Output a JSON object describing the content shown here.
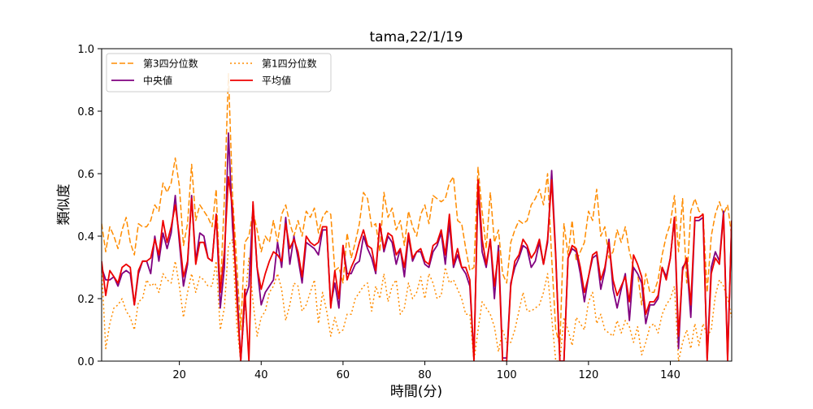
{
  "chart_data": {
    "type": "line",
    "title": "tama,22/1/19",
    "xlabel": "時間(分)",
    "ylabel": "類似度",
    "xlim": [
      1,
      155
    ],
    "ylim": [
      0.0,
      1.0
    ],
    "xticks": [
      20,
      40,
      60,
      80,
      100,
      120,
      140
    ],
    "yticks": [
      0.0,
      0.2,
      0.4,
      0.6,
      0.8,
      1.0
    ],
    "ytick_labels": [
      "0.0",
      "0.2",
      "0.4",
      "0.6",
      "0.8",
      "1.0"
    ],
    "grid": false,
    "legend_placement": "upper left, two columns",
    "x_start": 1,
    "series": [
      {
        "name": "第3四分位数",
        "color": "#ff8c00",
        "style": "dashed",
        "values": [
          0.44,
          0.35,
          0.43,
          0.4,
          0.36,
          0.42,
          0.46,
          0.38,
          0.34,
          0.44,
          0.43,
          0.43,
          0.45,
          0.5,
          0.48,
          0.57,
          0.54,
          0.57,
          0.65,
          0.56,
          0.37,
          0.44,
          0.63,
          0.45,
          0.5,
          0.48,
          0.46,
          0.43,
          0.55,
          0.22,
          0.52,
          0.92,
          0.53,
          0.32,
          0.1,
          0.38,
          0.4,
          0.48,
          0.42,
          0.35,
          0.4,
          0.38,
          0.45,
          0.38,
          0.47,
          0.5,
          0.44,
          0.4,
          0.45,
          0.4,
          0.48,
          0.46,
          0.49,
          0.41,
          0.46,
          0.48,
          0.47,
          0.29,
          0.3,
          0.25,
          0.41,
          0.33,
          0.38,
          0.44,
          0.54,
          0.52,
          0.43,
          0.44,
          0.35,
          0.54,
          0.46,
          0.49,
          0.42,
          0.45,
          0.37,
          0.48,
          0.43,
          0.4,
          0.47,
          0.5,
          0.44,
          0.53,
          0.52,
          0.51,
          0.52,
          0.57,
          0.59,
          0.45,
          0.44,
          0.36,
          0.29,
          0.3,
          0.62,
          0.48,
          0.36,
          0.54,
          0.38,
          0.42,
          0.28,
          0.25,
          0.38,
          0.42,
          0.45,
          0.44,
          0.45,
          0.5,
          0.52,
          0.55,
          0.5,
          0.6,
          0.33,
          0.1,
          0.05,
          0.44,
          0.34,
          0.45,
          0.32,
          0.35,
          0.38,
          0.48,
          0.45,
          0.55,
          0.4,
          0.43,
          0.33,
          0.35,
          0.42,
          0.38,
          0.43,
          0.35,
          0.3,
          0.28,
          0.18,
          0.28,
          0.22,
          0.22,
          0.26,
          0.34,
          0.4,
          0.44,
          0.53,
          0.35,
          0.52,
          0.25,
          0.48,
          0.52,
          0.48,
          0.47,
          0.22,
          0.4,
          0.47,
          0.51,
          0.47,
          0.5,
          0.4
        ]
      },
      {
        "name": "第1四分位数",
        "color": "#ff8c00",
        "style": "dotted",
        "values": [
          0.3,
          0.04,
          0.12,
          0.17,
          0.18,
          0.2,
          0.16,
          0.14,
          0.1,
          0.19,
          0.2,
          0.26,
          0.24,
          0.25,
          0.22,
          0.28,
          0.26,
          0.25,
          0.32,
          0.24,
          0.14,
          0.22,
          0.28,
          0.22,
          0.27,
          0.26,
          0.24,
          0.24,
          0.32,
          0.1,
          0.17,
          0.37,
          0.39,
          0.12,
          0.0,
          0.18,
          0.33,
          0.19,
          0.08,
          0.14,
          0.16,
          0.22,
          0.24,
          0.28,
          0.23,
          0.13,
          0.18,
          0.25,
          0.24,
          0.16,
          0.18,
          0.22,
          0.26,
          0.12,
          0.22,
          0.16,
          0.08,
          0.14,
          0.09,
          0.1,
          0.15,
          0.15,
          0.2,
          0.22,
          0.24,
          0.25,
          0.16,
          0.24,
          0.2,
          0.28,
          0.19,
          0.24,
          0.26,
          0.15,
          0.17,
          0.25,
          0.2,
          0.22,
          0.27,
          0.2,
          0.28,
          0.25,
          0.2,
          0.21,
          0.3,
          0.25,
          0.26,
          0.23,
          0.2,
          0.15,
          0.15,
          0.0,
          0.1,
          0.19,
          0.17,
          0.15,
          0.11,
          0.03,
          0.1,
          0.06,
          0.06,
          0.1,
          0.16,
          0.22,
          0.16,
          0.16,
          0.17,
          0.18,
          0.22,
          0.28,
          0.14,
          0.0,
          0.0,
          0.14,
          0.1,
          0.05,
          0.14,
          0.12,
          0.1,
          0.19,
          0.22,
          0.12,
          0.15,
          0.1,
          0.09,
          0.08,
          0.13,
          0.09,
          0.13,
          0.11,
          0.06,
          0.11,
          0.02,
          0.06,
          0.11,
          0.12,
          0.09,
          0.15,
          0.18,
          0.2,
          0.24,
          0.0,
          0.06,
          0.1,
          0.04,
          0.12,
          0.05,
          0.12,
          0.08,
          0.1,
          0.21,
          0.26,
          0.24,
          0.2,
          0.14
        ]
      },
      {
        "name": "中央値",
        "color": "#800080",
        "style": "solid",
        "values": [
          0.3,
          0.26,
          0.26,
          0.27,
          0.24,
          0.28,
          0.29,
          0.28,
          0.18,
          0.28,
          0.32,
          0.32,
          0.28,
          0.4,
          0.32,
          0.41,
          0.36,
          0.41,
          0.53,
          0.38,
          0.24,
          0.31,
          0.53,
          0.32,
          0.41,
          0.4,
          0.33,
          0.32,
          0.47,
          0.17,
          0.3,
          0.73,
          0.43,
          0.25,
          0.0,
          0.2,
          0.24,
          0.5,
          0.3,
          0.18,
          0.22,
          0.24,
          0.26,
          0.38,
          0.3,
          0.46,
          0.31,
          0.4,
          0.33,
          0.25,
          0.38,
          0.37,
          0.36,
          0.34,
          0.42,
          0.42,
          0.18,
          0.25,
          0.17,
          0.37,
          0.28,
          0.28,
          0.31,
          0.32,
          0.4,
          0.36,
          0.33,
          0.28,
          0.44,
          0.35,
          0.4,
          0.38,
          0.31,
          0.36,
          0.27,
          0.4,
          0.32,
          0.35,
          0.35,
          0.31,
          0.3,
          0.35,
          0.37,
          0.41,
          0.31,
          0.44,
          0.3,
          0.34,
          0.3,
          0.28,
          0.24,
          0.01,
          0.56,
          0.35,
          0.3,
          0.39,
          0.2,
          0.37,
          0.01,
          0.01,
          0.25,
          0.3,
          0.33,
          0.37,
          0.36,
          0.3,
          0.32,
          0.38,
          0.31,
          0.38,
          0.61,
          0.34,
          0.0,
          0.0,
          0.33,
          0.36,
          0.35,
          0.28,
          0.19,
          0.27,
          0.33,
          0.34,
          0.23,
          0.29,
          0.39,
          0.23,
          0.17,
          0.23,
          0.28,
          0.13,
          0.3,
          0.28,
          0.25,
          0.12,
          0.18,
          0.18,
          0.2,
          0.3,
          0.27,
          0.33,
          0.46,
          0.04,
          0.3,
          0.32,
          0.14,
          0.45,
          0.45,
          0.46,
          0.01,
          0.3,
          0.35,
          0.32,
          0.48,
          0.01,
          0.45
        ]
      },
      {
        "name": "平均値",
        "color": "#ee0000",
        "style": "solid",
        "values": [
          0.32,
          0.21,
          0.29,
          0.27,
          0.25,
          0.3,
          0.31,
          0.3,
          0.18,
          0.29,
          0.32,
          0.32,
          0.33,
          0.39,
          0.34,
          0.45,
          0.38,
          0.43,
          0.5,
          0.4,
          0.27,
          0.32,
          0.52,
          0.31,
          0.38,
          0.38,
          0.33,
          0.32,
          0.47,
          0.22,
          0.35,
          0.59,
          0.49,
          0.21,
          0.0,
          0.23,
          0.0,
          0.51,
          0.3,
          0.23,
          0.28,
          0.32,
          0.35,
          0.34,
          0.32,
          0.44,
          0.36,
          0.39,
          0.35,
          0.27,
          0.4,
          0.38,
          0.37,
          0.38,
          0.43,
          0.43,
          0.17,
          0.29,
          0.2,
          0.37,
          0.26,
          0.3,
          0.33,
          0.38,
          0.42,
          0.37,
          0.36,
          0.29,
          0.44,
          0.36,
          0.41,
          0.4,
          0.34,
          0.36,
          0.3,
          0.41,
          0.33,
          0.35,
          0.36,
          0.32,
          0.31,
          0.37,
          0.38,
          0.42,
          0.34,
          0.47,
          0.31,
          0.36,
          0.3,
          0.3,
          0.26,
          0.0,
          0.58,
          0.39,
          0.31,
          0.39,
          0.24,
          0.35,
          0.0,
          0.0,
          0.24,
          0.32,
          0.34,
          0.39,
          0.37,
          0.33,
          0.35,
          0.39,
          0.31,
          0.39,
          0.58,
          0.33,
          0.0,
          0.0,
          0.33,
          0.37,
          0.36,
          0.3,
          0.22,
          0.27,
          0.34,
          0.35,
          0.26,
          0.3,
          0.38,
          0.26,
          0.21,
          0.24,
          0.27,
          0.19,
          0.34,
          0.31,
          0.27,
          0.15,
          0.19,
          0.19,
          0.21,
          0.3,
          0.26,
          0.33,
          0.46,
          0.08,
          0.29,
          0.33,
          0.18,
          0.46,
          0.46,
          0.47,
          0.0,
          0.28,
          0.33,
          0.31,
          0.47,
          0.0,
          0.45
        ]
      }
    ]
  }
}
